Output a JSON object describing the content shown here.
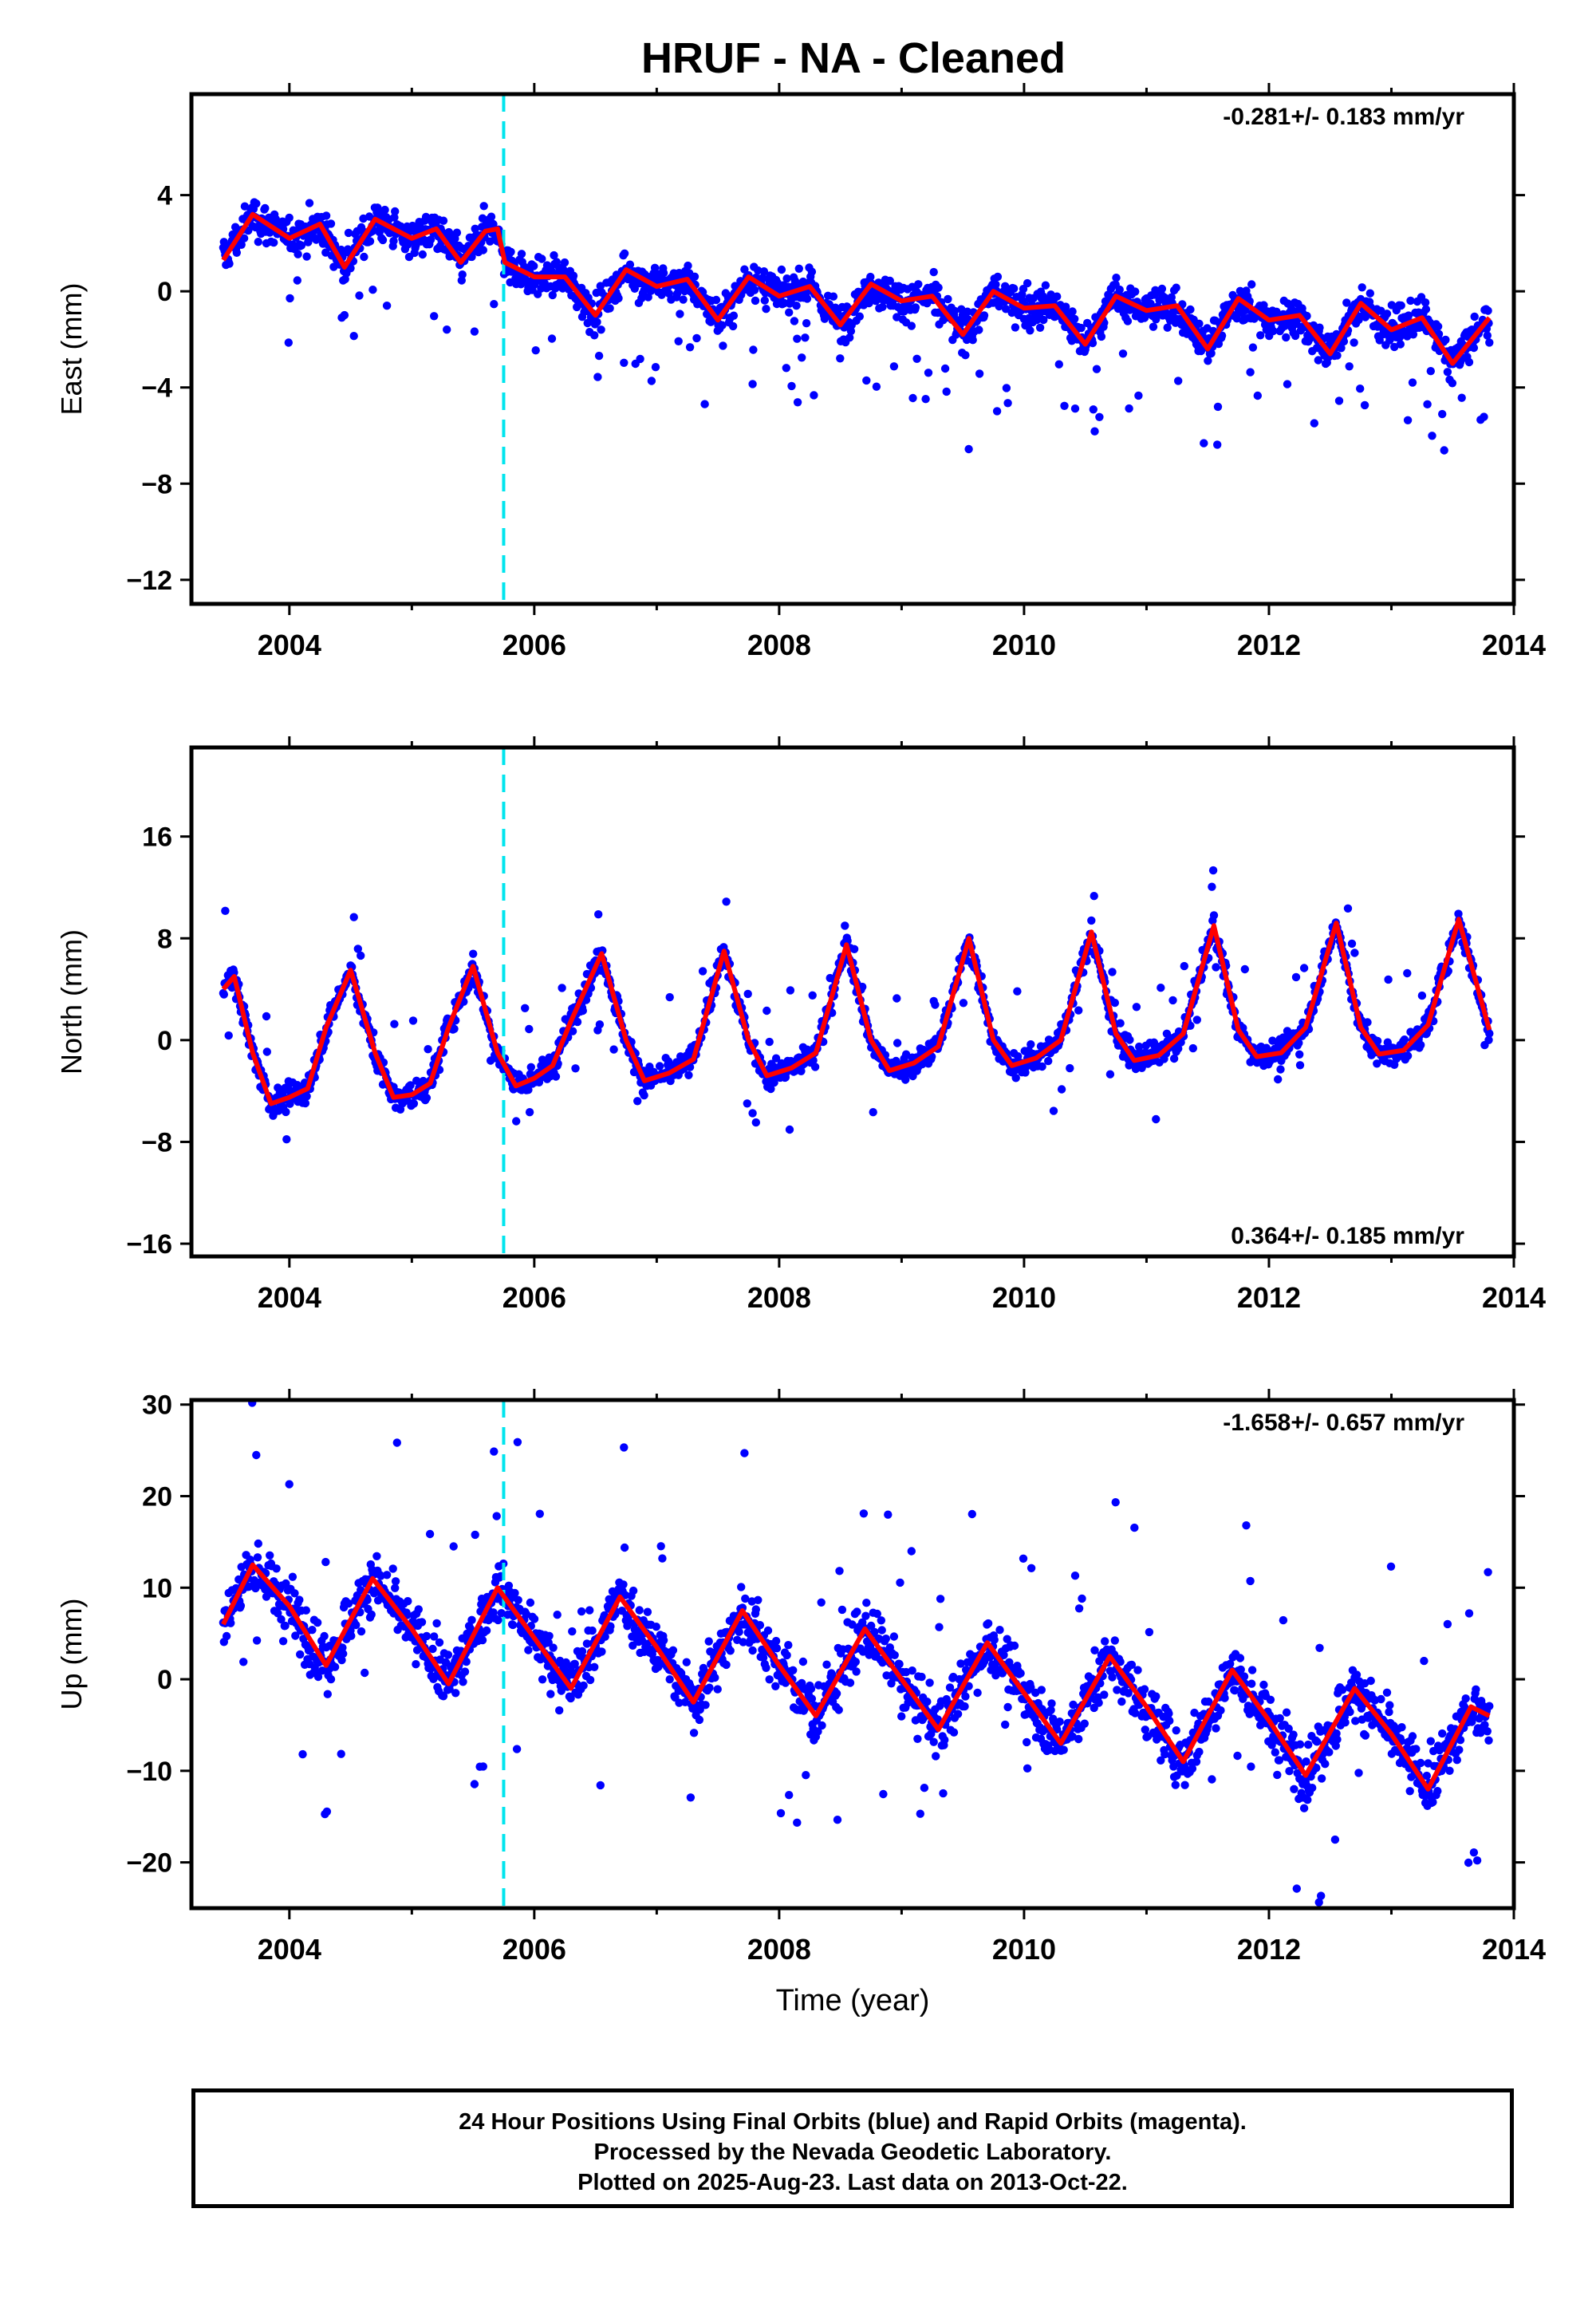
{
  "title": "HRUF  - NA - Cleaned",
  "colors": {
    "final_orbits": "#0000ff",
    "model": "#ff0000",
    "event_line": "#00e5ee",
    "axes": "#000000"
  },
  "panels": [
    {
      "id": "east",
      "ylabel": "East (mm)",
      "rate": "-0.281+/- 0.183 mm/yr",
      "rate_position": "top-right"
    },
    {
      "id": "north",
      "ylabel": "North (mm)",
      "rate": "0.364+/- 0.185 mm/yr",
      "rate_position": "bottom-right"
    },
    {
      "id": "up",
      "ylabel": "Up (mm)",
      "rate": "-1.658+/- 0.657 mm/yr",
      "rate_position": "top-right"
    }
  ],
  "xlabel": "Time (year)",
  "footer": {
    "line1": "24 Hour Positions Using Final Orbits (blue) and Rapid Orbits (magenta).",
    "line2": "Processed by the Nevada Geodetic Laboratory.",
    "line3": "Plotted on 2025-Aug-23. Last data on 2013-Oct-22."
  },
  "chart_data": [
    {
      "type": "scatter",
      "title": "",
      "xlabel": "",
      "ylabel": "East (mm)",
      "xlim": [
        2003.2,
        2014.0
      ],
      "ylim": [
        -13,
        8.2
      ],
      "xticks": [
        2004,
        2006,
        2008,
        2010,
        2012,
        2014
      ],
      "yticks": [
        -12,
        -8,
        -4,
        0,
        4
      ],
      "event_line_x": 2005.75,
      "series": [
        {
          "x": [
            2003.46,
            2003.7,
            2004.0,
            2004.25,
            2004.45,
            2004.7,
            2005.0,
            2005.2,
            2005.4,
            2005.6,
            2005.7,
            2005.76,
            2006.0,
            2006.25,
            2006.5,
            2006.75,
            2007.0,
            2007.25,
            2007.5,
            2007.75,
            2008.0,
            2008.25,
            2008.5,
            2008.75,
            2009.0,
            2009.25,
            2009.5,
            2009.75,
            2010.0,
            2010.25,
            2010.5,
            2010.75,
            2011.0,
            2011.25,
            2011.5,
            2011.75,
            2012.0,
            2012.25,
            2012.5,
            2012.75,
            2013.0,
            2013.25,
            2013.5,
            2013.8
          ],
          "y": [
            1.3,
            3.2,
            2.2,
            2.8,
            1.0,
            3.0,
            2.2,
            2.6,
            1.2,
            2.5,
            2.6,
            1.2,
            0.6,
            0.6,
            -1.0,
            0.9,
            0.2,
            0.5,
            -1.2,
            0.6,
            -0.2,
            0.2,
            -1.4,
            0.3,
            -0.4,
            -0.2,
            -1.8,
            0.0,
            -0.7,
            -0.6,
            -2.2,
            -0.2,
            -0.8,
            -0.6,
            -2.4,
            -0.3,
            -1.2,
            -1.0,
            -2.6,
            -0.5,
            -1.6,
            -1.1,
            -3.0,
            -1.1
          ]
        }
      ]
    },
    {
      "type": "scatter",
      "title": "",
      "xlabel": "",
      "ylabel": "North (mm)",
      "xlim": [
        2003.2,
        2014.0
      ],
      "ylim": [
        -17,
        23
      ],
      "xticks": [
        2004,
        2006,
        2008,
        2010,
        2012,
        2014
      ],
      "yticks": [
        -16,
        -8,
        0,
        8,
        16
      ],
      "event_line_x": 2005.75,
      "series": [
        {
          "x": [
            2003.46,
            2003.55,
            2003.7,
            2003.85,
            2004.0,
            2004.15,
            2004.3,
            2004.5,
            2004.7,
            2004.85,
            2005.0,
            2005.15,
            2005.3,
            2005.5,
            2005.7,
            2005.85,
            2006.0,
            2006.15,
            2006.3,
            2006.55,
            2006.75,
            2006.9,
            2007.1,
            2007.3,
            2007.55,
            2007.75,
            2007.9,
            2008.1,
            2008.3,
            2008.55,
            2008.75,
            2008.9,
            2009.1,
            2009.3,
            2009.55,
            2009.75,
            2009.9,
            2010.1,
            2010.3,
            2010.55,
            2010.75,
            2010.9,
            2011.1,
            2011.3,
            2011.55,
            2011.75,
            2011.9,
            2012.1,
            2012.3,
            2012.55,
            2012.75,
            2012.9,
            2013.1,
            2013.3,
            2013.55,
            2013.8
          ],
          "y": [
            4.0,
            5.0,
            -1.0,
            -5.0,
            -4.5,
            -3.8,
            1.0,
            5.5,
            -1.0,
            -4.5,
            -4.3,
            -3.4,
            1.0,
            5.8,
            -1.0,
            -3.6,
            -3.0,
            -2.0,
            1.5,
            6.8,
            0.0,
            -3.2,
            -2.6,
            -1.5,
            7.0,
            0.0,
            -2.8,
            -2.2,
            -1.0,
            7.5,
            0.0,
            -2.4,
            -1.8,
            -0.5,
            8.0,
            0.0,
            -2.0,
            -1.4,
            0.0,
            8.5,
            0.5,
            -1.6,
            -1.2,
            0.5,
            9.0,
            0.8,
            -1.3,
            -1.0,
            1.0,
            9.2,
            1.0,
            -1.1,
            -0.8,
            1.2,
            9.5,
            0.8
          ]
        }
      ]
    },
    {
      "type": "scatter",
      "title": "",
      "xlabel": "Time (year)",
      "ylabel": "Up (mm)",
      "xlim": [
        2003.2,
        2014.0
      ],
      "ylim": [
        -25,
        30.5
      ],
      "xticks": [
        2004,
        2006,
        2008,
        2010,
        2012,
        2014
      ],
      "yticks": [
        -20,
        -10,
        0,
        10,
        20,
        30
      ],
      "event_line_x": 2005.75,
      "series": [
        {
          "x": [
            2003.46,
            2003.7,
            2004.0,
            2004.3,
            2004.68,
            2005.0,
            2005.3,
            2005.7,
            2006.0,
            2006.3,
            2006.7,
            2007.0,
            2007.3,
            2007.7,
            2008.0,
            2008.3,
            2008.7,
            2009.0,
            2009.3,
            2009.7,
            2010.0,
            2010.3,
            2010.7,
            2011.0,
            2011.3,
            2011.7,
            2012.0,
            2012.3,
            2012.7,
            2013.0,
            2013.3,
            2013.65,
            2013.8
          ],
          "y": [
            6.0,
            12.5,
            8.0,
            1.5,
            11.0,
            5.5,
            -0.5,
            10.0,
            4.5,
            -1.0,
            9.0,
            3.5,
            -2.5,
            7.5,
            1.5,
            -4.0,
            5.5,
            0.0,
            -5.5,
            4.0,
            -1.5,
            -7.0,
            2.5,
            -3.0,
            -9.0,
            1.0,
            -4.5,
            -10.5,
            -1.0,
            -6.0,
            -12.0,
            -3.0,
            -4.0
          ]
        }
      ]
    }
  ]
}
